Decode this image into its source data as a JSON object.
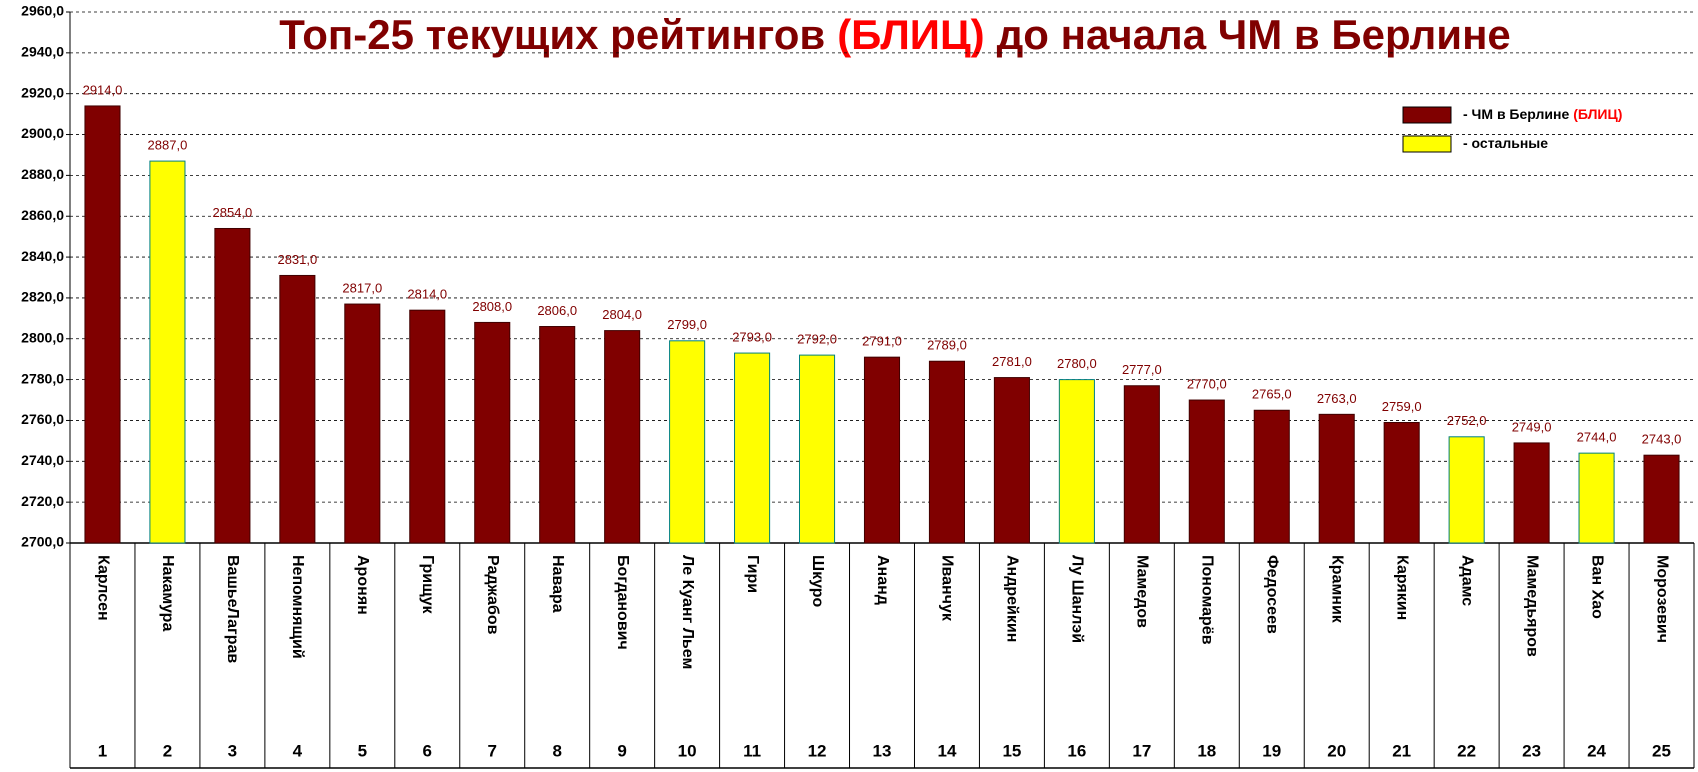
{
  "chart_data": {
    "type": "bar",
    "title": [
      "Топ-25 текущих рейтингов",
      "(БЛИЦ)",
      "до начала ЧМ в Берлине"
    ],
    "categories": [
      "Карлсен",
      "Накамура",
      "ВашьеЛаграв",
      "Непомнящий",
      "Аронян",
      "Грищук",
      "Раджабов",
      "Навара",
      "Богданович",
      "Ле Куанг Льем",
      "Гири",
      "Шкуро",
      "Ананд",
      "Иванчук",
      "Андрейкин",
      "Лу Шанлэй",
      "Мамедов",
      "Пономарёв",
      "Федосеев",
      "Крамник",
      "Карякин",
      "Адамс",
      "Мамедьяров",
      "Ван Хао",
      "Морозевич"
    ],
    "ranks": [
      1,
      2,
      3,
      4,
      5,
      6,
      7,
      8,
      9,
      10,
      11,
      12,
      13,
      14,
      15,
      16,
      17,
      18,
      19,
      20,
      21,
      22,
      23,
      24,
      25
    ],
    "values": [
      2914,
      2887,
      2854,
      2831,
      2817,
      2814,
      2808,
      2806,
      2804,
      2799,
      2793,
      2792,
      2791,
      2789,
      2781,
      2780,
      2777,
      2770,
      2765,
      2763,
      2759,
      2752,
      2749,
      2744,
      2743
    ],
    "value_labels": [
      "2914,0",
      "2887,0",
      "2854,0",
      "2831,0",
      "2817,0",
      "2814,0",
      "2808,0",
      "2806,0",
      "2804,0",
      "2799,0",
      "2793,0",
      "2792,0",
      "2791,0",
      "2789,0",
      "2781,0",
      "2780,0",
      "2777,0",
      "2770,0",
      "2765,0",
      "2763,0",
      "2759,0",
      "2752,0",
      "2749,0",
      "2744,0",
      "2743,0"
    ],
    "colors": [
      "#800000",
      "#ffff00",
      "#800000",
      "#800000",
      "#800000",
      "#800000",
      "#800000",
      "#800000",
      "#800000",
      "#ffff00",
      "#ffff00",
      "#ffff00",
      "#800000",
      "#800000",
      "#800000",
      "#ffff00",
      "#800000",
      "#800000",
      "#800000",
      "#800000",
      "#800000",
      "#ffff00",
      "#800000",
      "#ffff00",
      "#800000"
    ],
    "legend": [
      {
        "color": "#800000",
        "label": [
          "- ЧМ в Берлине",
          "(БЛИЦ)"
        ]
      },
      {
        "color": "#ffff00",
        "label": [
          "- остальные"
        ]
      }
    ],
    "ylim": [
      2700,
      2960
    ],
    "yticks": [
      {
        "value": 2700,
        "label": "2700,0"
      },
      {
        "value": 2720,
        "label": "2720,0"
      },
      {
        "value": 2740,
        "label": "2740,0"
      },
      {
        "value": 2760,
        "label": "2760,0"
      },
      {
        "value": 2780,
        "label": "2780,0"
      },
      {
        "value": 2800,
        "label": "2800,0"
      },
      {
        "value": 2820,
        "label": "2820,0"
      },
      {
        "value": 2840,
        "label": "2840,0"
      },
      {
        "value": 2860,
        "label": "2860,0"
      },
      {
        "value": 2880,
        "label": "2880,0"
      },
      {
        "value": 2900,
        "label": "2900,0"
      },
      {
        "value": 2920,
        "label": "2920,0"
      },
      {
        "value": 2940,
        "label": "2940,0"
      },
      {
        "value": 2960,
        "label": "2960,0"
      }
    ],
    "grid": true
  }
}
